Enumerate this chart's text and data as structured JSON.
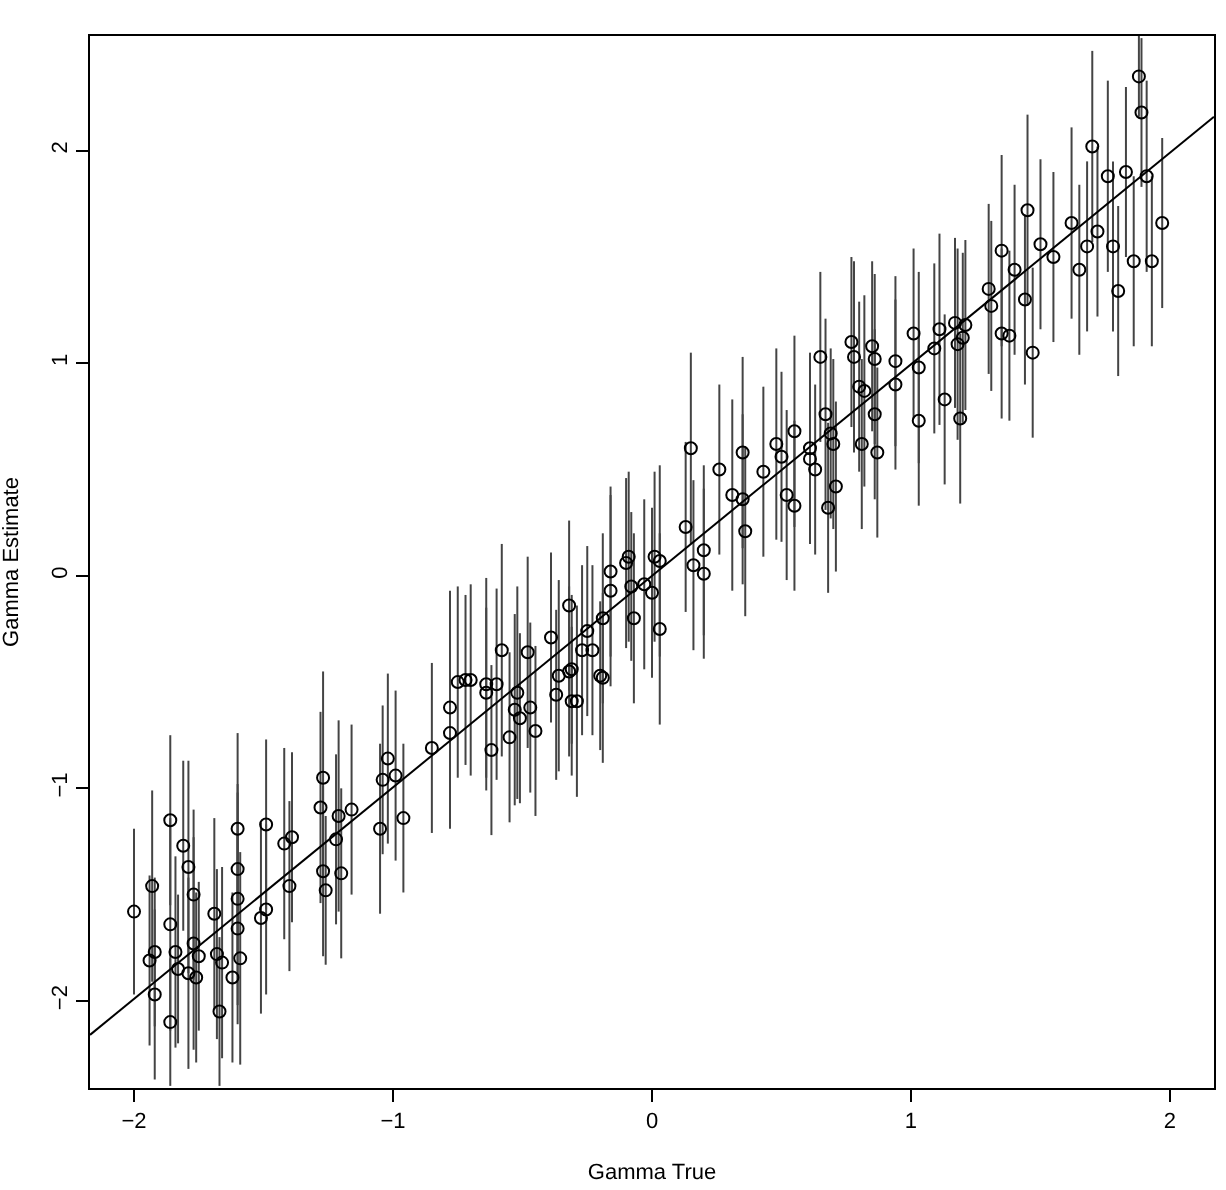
{
  "chart_data": {
    "type": "scatter",
    "xlabel": "Gamma True",
    "ylabel": "Gamma Estimate",
    "xlim": [
      -2.17,
      2.17
    ],
    "ylim": [
      -2.41,
      2.54
    ],
    "xticks": [
      -2,
      -1,
      0,
      1,
      2
    ],
    "yticks": [
      -2,
      -1,
      0,
      1,
      2
    ],
    "marker": "circle",
    "series": [
      {
        "color": "#000000",
        "x": [
          -2.0,
          -1.94,
          -1.93,
          -1.92,
          -1.92,
          -1.86,
          -1.86,
          -1.86,
          -1.84,
          -1.83,
          -1.81,
          -1.79,
          -1.79,
          -1.77,
          -1.77,
          -1.76,
          -1.75,
          -1.69,
          -1.68,
          -1.67,
          -1.66,
          -1.62,
          -1.6,
          -1.6,
          -1.6,
          -1.6,
          -1.59,
          -1.49,
          -1.51,
          -1.49,
          -1.42,
          -1.4,
          -1.39,
          -1.28,
          -1.27,
          -1.27,
          -1.26,
          -1.22,
          -1.21,
          -1.2,
          -1.16,
          -1.05,
          -1.04,
          -1.02,
          -0.99,
          -0.96,
          -0.85,
          -0.78,
          -0.78,
          -0.75,
          -0.72,
          -0.7,
          -0.64,
          -0.64,
          -0.62,
          -0.6,
          -0.58,
          -0.55,
          -0.53,
          -0.52,
          -0.51,
          -0.48,
          -0.47,
          -0.45,
          -0.37,
          -0.36,
          -0.32,
          -0.31,
          -0.27,
          -0.19,
          -0.39,
          -0.32,
          -0.31,
          -0.29,
          -0.25,
          -0.23,
          -0.2,
          -0.19,
          -0.16,
          -0.16,
          -0.1,
          -0.09,
          -0.08,
          -0.07,
          -0.03,
          0.01,
          0.0,
          0.03,
          0.03,
          0.13,
          0.15,
          0.16,
          0.2,
          0.2,
          0.26,
          0.31,
          0.35,
          0.35,
          0.36,
          0.43,
          0.48,
          0.5,
          0.52,
          0.55,
          0.55,
          0.61,
          0.61,
          0.63,
          0.65,
          0.67,
          0.69,
          0.7,
          0.71,
          0.68,
          0.77,
          0.78,
          0.8,
          0.81,
          0.82,
          0.85,
          0.86,
          0.86,
          0.87,
          0.94,
          0.94,
          1.01,
          1.03,
          1.03,
          1.09,
          1.11,
          1.13,
          1.17,
          1.18,
          1.19,
          1.2,
          1.21,
          1.31,
          1.35,
          1.38,
          1.44,
          1.47,
          1.3,
          1.35,
          1.4,
          1.45,
          1.5,
          1.55,
          1.62,
          1.65,
          1.68,
          1.7,
          1.72,
          1.76,
          1.78,
          1.8,
          1.83,
          1.86,
          1.88,
          1.89,
          1.91,
          1.93,
          1.97
        ],
        "values": [
          -1.58,
          -1.81,
          -1.46,
          -1.77,
          -1.97,
          -1.15,
          -1.64,
          -2.1,
          -1.77,
          -1.85,
          -1.27,
          -1.37,
          -1.87,
          -1.5,
          -1.73,
          -1.89,
          -1.79,
          -1.59,
          -1.78,
          -2.05,
          -1.82,
          -1.89,
          -1.19,
          -1.38,
          -1.52,
          -1.66,
          -1.8,
          -1.17,
          -1.61,
          -1.57,
          -1.26,
          -1.46,
          -1.23,
          -1.09,
          -0.95,
          -1.39,
          -1.48,
          -1.24,
          -1.13,
          -1.4,
          -1.1,
          -1.19,
          -0.96,
          -0.86,
          -0.94,
          -1.14,
          -0.81,
          -0.62,
          -0.74,
          -0.5,
          -0.49,
          -0.49,
          -0.51,
          -0.55,
          -0.82,
          -0.51,
          -0.35,
          -0.76,
          -0.63,
          -0.55,
          -0.67,
          -0.36,
          -0.62,
          -0.73,
          -0.56,
          -0.47,
          -0.45,
          -0.59,
          -0.35,
          -0.48,
          -0.29,
          -0.14,
          -0.44,
          -0.59,
          -0.26,
          -0.35,
          -0.47,
          -0.2,
          0.02,
          -0.07,
          0.06,
          0.09,
          -0.05,
          -0.2,
          -0.04,
          0.09,
          -0.08,
          0.07,
          -0.25,
          0.23,
          0.6,
          0.05,
          0.12,
          0.01,
          0.5,
          0.38,
          0.58,
          0.36,
          0.21,
          0.49,
          0.62,
          0.56,
          0.38,
          0.68,
          0.33,
          0.6,
          0.55,
          0.5,
          1.03,
          0.76,
          0.67,
          0.62,
          0.42,
          0.32,
          1.1,
          1.03,
          0.89,
          0.62,
          0.87,
          1.08,
          0.76,
          1.02,
          0.58,
          1.01,
          0.9,
          1.14,
          0.98,
          0.73,
          1.07,
          1.16,
          0.83,
          1.19,
          1.09,
          0.74,
          1.12,
          1.18,
          1.27,
          1.14,
          1.13,
          1.3,
          1.05,
          1.35,
          1.53,
          1.44,
          1.72,
          1.56,
          1.5,
          1.66,
          1.44,
          1.55,
          2.02,
          1.62,
          1.88,
          1.55,
          1.34,
          1.9,
          1.48,
          2.35,
          2.18,
          1.88,
          1.48,
          1.66
        ],
        "errors": [
          0.39,
          0.4,
          0.45,
          0.35,
          0.4,
          0.4,
          0.5,
          0.3,
          0.45,
          0.35,
          0.4,
          0.5,
          0.45,
          0.4,
          0.5,
          0.4,
          0.35,
          0.45,
          0.4,
          0.35,
          0.45,
          0.4,
          0.45,
          0.4,
          0.5,
          0.45,
          0.5,
          0.4,
          0.45,
          0.4,
          0.45,
          0.4,
          0.4,
          0.45,
          0.5,
          0.4,
          0.35,
          0.4,
          0.45,
          0.4,
          0.4,
          0.4,
          0.35,
          0.4,
          0.4,
          0.35,
          0.4,
          0.55,
          0.45,
          0.45,
          0.4,
          0.45,
          0.5,
          0.4,
          0.4,
          0.45,
          0.5,
          0.4,
          0.45,
          0.5,
          0.4,
          0.45,
          0.4,
          0.4,
          0.4,
          0.45,
          0.4,
          0.35,
          0.4,
          0.4,
          0.4,
          0.4,
          0.35,
          0.45,
          0.4,
          0.4,
          0.35,
          0.4,
          0.4,
          0.45,
          0.4,
          0.4,
          0.35,
          0.4,
          0.4,
          0.4,
          0.4,
          0.45,
          0.45,
          0.4,
          0.45,
          0.4,
          0.4,
          0.4,
          0.4,
          0.45,
          0.45,
          0.4,
          0.4,
          0.4,
          0.45,
          0.4,
          0.4,
          0.45,
          0.4,
          0.45,
          0.4,
          0.4,
          0.4,
          0.45,
          0.4,
          0.4,
          0.4,
          0.4,
          0.4,
          0.45,
          0.4,
          0.4,
          0.45,
          0.4,
          0.4,
          0.4,
          0.4,
          0.4,
          0.4,
          0.4,
          0.45,
          0.4,
          0.4,
          0.45,
          0.4,
          0.4,
          0.45,
          0.4,
          0.4,
          0.4,
          0.4,
          0.4,
          0.4,
          0.4,
          0.4,
          0.4,
          0.45,
          0.4,
          0.45,
          0.4,
          0.4,
          0.45,
          0.4,
          0.4,
          0.45,
          0.4,
          0.45,
          0.4,
          0.4,
          0.4,
          0.4,
          0.19,
          0.35,
          0.45,
          0.4,
          0.4
        ]
      },
      {
        "type": "line",
        "marker": "none",
        "color": "#000000",
        "x": [
          -2.17,
          2.17
        ],
        "values": [
          -2.16,
          2.16
        ]
      }
    ]
  }
}
